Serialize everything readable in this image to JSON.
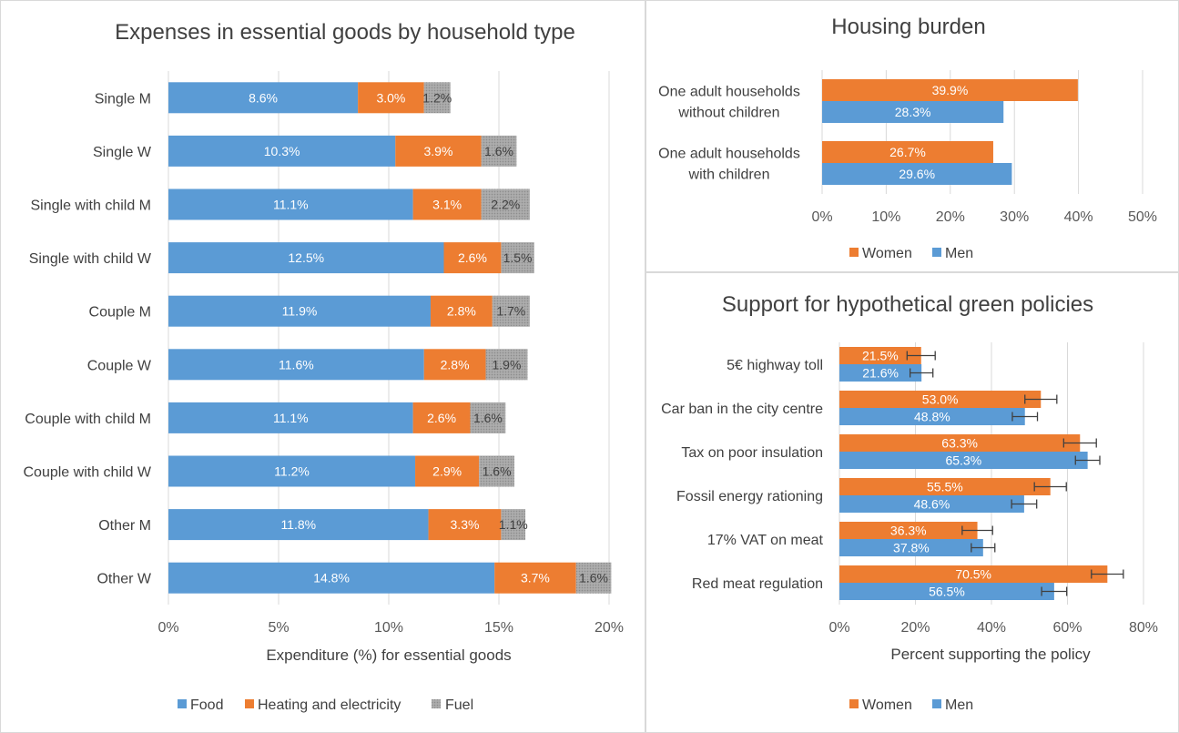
{
  "colors": {
    "women": "#ED7D31",
    "men": "#5B9BD5",
    "food": "#5B9BD5",
    "heating": "#ED7D31",
    "fuel": "#A5A5A5"
  },
  "chart_data": [
    {
      "id": "expenses",
      "type": "bar",
      "orientation": "horizontal",
      "stacked": true,
      "title": "Expenses in essential goods by household type",
      "xlabel": "Expenditure (%) for essential goods",
      "xlim": [
        0,
        20
      ],
      "ticks": [
        "0%",
        "5%",
        "10%",
        "15%",
        "20%"
      ],
      "legend_position": "bottom",
      "categories": [
        "Single M",
        "Single W",
        "Single with child M",
        "Single with child W",
        "Couple M",
        "Couple W",
        "Couple with child M",
        "Couple with child W",
        "Other M",
        "Other W"
      ],
      "series": [
        {
          "name": "Food",
          "color": "#5B9BD5",
          "values": [
            8.6,
            10.3,
            11.1,
            12.5,
            11.9,
            11.6,
            11.1,
            11.2,
            11.8,
            14.8
          ],
          "labels": [
            "8.6%",
            "10.3%",
            "11.1%",
            "12.5%",
            "11.9%",
            "11.6%",
            "11.1%",
            "11.2%",
            "11.8%",
            "14.8%"
          ]
        },
        {
          "name": "Heating and electricity",
          "color": "#ED7D31",
          "values": [
            3.0,
            3.9,
            3.1,
            2.6,
            2.8,
            2.8,
            2.6,
            2.9,
            3.3,
            3.7
          ],
          "labels": [
            "3.0%",
            "3.9%",
            "3.1%",
            "2.6%",
            "2.8%",
            "2.8%",
            "2.6%",
            "2.9%",
            "3.3%",
            "3.7%"
          ]
        },
        {
          "name": "Fuel",
          "color": "#A5A5A5",
          "values": [
            1.2,
            1.6,
            2.2,
            1.5,
            1.7,
            1.9,
            1.6,
            1.6,
            1.1,
            1.6
          ],
          "labels": [
            "1.2%",
            "1.6%",
            "2.2%",
            "1.5%",
            "1.7%",
            "1.9%",
            "1.6%",
            "1.6%",
            "1.1%",
            "1.6%"
          ]
        }
      ]
    },
    {
      "id": "housing",
      "type": "bar",
      "orientation": "horizontal",
      "title": "Housing burden",
      "xlabel": "",
      "xlim": [
        0,
        50
      ],
      "ticks": [
        "0%",
        "10%",
        "20%",
        "30%",
        "40%",
        "50%"
      ],
      "legend_position": "bottom",
      "categories": [
        [
          "One adult households",
          "without children"
        ],
        [
          "One adult households",
          "with children"
        ]
      ],
      "series": [
        {
          "name": "Women",
          "color": "#ED7D31",
          "values": [
            39.9,
            26.7
          ],
          "labels": [
            "39.9%",
            "26.7%"
          ]
        },
        {
          "name": "Men",
          "color": "#5B9BD5",
          "values": [
            28.3,
            29.6
          ],
          "labels": [
            "28.3%",
            "29.6%"
          ]
        }
      ]
    },
    {
      "id": "support",
      "type": "bar",
      "orientation": "horizontal",
      "title": "Support for hypothetical green policies",
      "xlabel": "Percent supporting the policy",
      "xlim": [
        0,
        80
      ],
      "ticks": [
        "0%",
        "20%",
        "40%",
        "60%",
        "80%"
      ],
      "legend_position": "bottom",
      "error_bars": true,
      "categories": [
        "5€ highway toll",
        "Car ban in the city centre",
        "Tax on poor insulation",
        "Fossil energy rationing",
        "17% VAT on meat",
        "Red meat regulation"
      ],
      "series": [
        {
          "name": "Women",
          "color": "#ED7D31",
          "values": [
            21.5,
            53.0,
            63.3,
            55.5,
            36.3,
            70.5
          ],
          "labels": [
            "21.5%",
            "53.0%",
            "63.3%",
            "55.5%",
            "36.3%",
            "70.5%"
          ],
          "errors": [
            3.7,
            4.2,
            4.3,
            4.2,
            4.0,
            4.2
          ]
        },
        {
          "name": "Men",
          "color": "#5B9BD5",
          "values": [
            21.6,
            48.8,
            65.3,
            48.6,
            37.8,
            56.5
          ],
          "labels": [
            "21.6%",
            "48.8%",
            "65.3%",
            "48.6%",
            "37.8%",
            "56.5%"
          ],
          "errors": [
            3.0,
            3.3,
            3.2,
            3.3,
            3.1,
            3.3
          ]
        }
      ]
    }
  ]
}
